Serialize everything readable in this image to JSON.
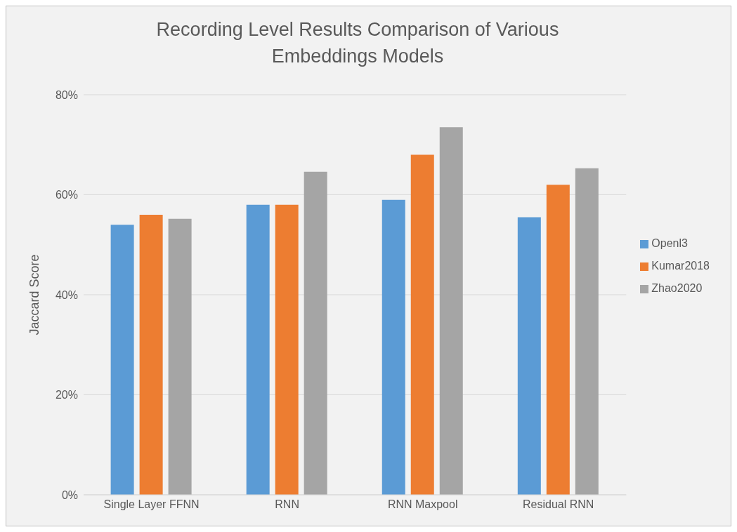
{
  "chart_data": {
    "type": "bar",
    "title": "Recording Level Results Comparison of Various Embeddings Models",
    "ylabel": "Jaccard Score",
    "categories": [
      "Single Layer FFNN",
      "RNN",
      "RNN Maxpool",
      "Residual RNN"
    ],
    "series": [
      {
        "name": "Openl3",
        "color": "#5b9bd5",
        "values": [
          54,
          58,
          59,
          55.5
        ]
      },
      {
        "name": "Kumar2018",
        "color": "#ed7d31",
        "values": [
          56,
          58,
          68,
          62
        ]
      },
      {
        "name": "Zhao2020",
        "color": "#a5a5a5",
        "values": [
          55.2,
          64.6,
          73.5,
          65.3
        ]
      }
    ],
    "ylim": [
      0,
      80
    ],
    "yticks": [
      {
        "value": 0,
        "label": "0%"
      },
      {
        "value": 20,
        "label": "20%"
      },
      {
        "value": 40,
        "label": "40%"
      },
      {
        "value": 60,
        "label": "60%"
      },
      {
        "value": 80,
        "label": "80%"
      }
    ],
    "grid": "y",
    "legend": "right"
  }
}
